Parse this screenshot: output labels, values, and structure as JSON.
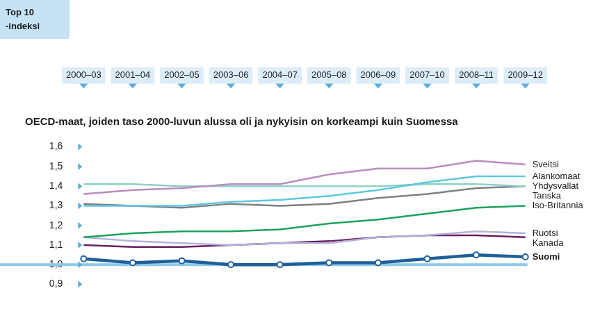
{
  "chart_data": {
    "type": "line",
    "title": "OECD-maat, joiden taso 2000-luvun alussa oli ja nykyisin on korkeampi kuin Suomessa",
    "y_label": "Top 10 -indeksi",
    "categories": [
      "2000–03",
      "2001–04",
      "2002–05",
      "2003–06",
      "2004–07",
      "2005–08",
      "2006–09",
      "2007–10",
      "2008–11",
      "2009–12"
    ],
    "ylim": [
      0.9,
      1.6
    ],
    "yticks": [
      {
        "value": 0.9,
        "label": "0,9"
      },
      {
        "value": 1.0,
        "label": "1,0"
      },
      {
        "value": 1.1,
        "label": "1,1"
      },
      {
        "value": 1.2,
        "label": "1,2"
      },
      {
        "value": 1.3,
        "label": "1,3"
      },
      {
        "value": 1.4,
        "label": "1,4"
      },
      {
        "value": 1.5,
        "label": "1,5"
      },
      {
        "value": 1.6,
        "label": "1,6"
      }
    ],
    "reference_line": 1.0,
    "grid": false,
    "series": [
      {
        "name": "Sveitsi",
        "color": "#b98cc0",
        "values": [
          1.36,
          1.38,
          1.39,
          1.41,
          1.41,
          1.46,
          1.49,
          1.49,
          1.53,
          1.51
        ]
      },
      {
        "name": "Alankomaat",
        "color": "#5cc8e0",
        "values": [
          1.3,
          1.3,
          1.3,
          1.32,
          1.33,
          1.35,
          1.38,
          1.42,
          1.45,
          1.45
        ]
      },
      {
        "name": "Yhdysvallat",
        "color": "#8ed1c6",
        "values": [
          1.41,
          1.41,
          1.4,
          1.4,
          1.4,
          1.4,
          1.4,
          1.41,
          1.41,
          1.4
        ]
      },
      {
        "name": "Tanska",
        "color": "#7f7f7f",
        "values": [
          1.31,
          1.3,
          1.29,
          1.31,
          1.3,
          1.31,
          1.34,
          1.36,
          1.39,
          1.4
        ]
      },
      {
        "name": "Iso-Britannia",
        "color": "#1aa35a",
        "values": [
          1.14,
          1.16,
          1.17,
          1.17,
          1.18,
          1.21,
          1.23,
          1.26,
          1.29,
          1.3
        ]
      },
      {
        "name": "Ruotsi",
        "color": "#b3b3de",
        "values": [
          1.14,
          1.12,
          1.11,
          1.1,
          1.11,
          1.11,
          1.14,
          1.15,
          1.17,
          1.16
        ]
      },
      {
        "name": "Kanada",
        "color": "#6b1f5e",
        "values": [
          1.1,
          1.09,
          1.09,
          1.1,
          1.11,
          1.12,
          1.14,
          1.15,
          1.15,
          1.14
        ]
      },
      {
        "name": "Suomi",
        "color": "#1f5f99",
        "marker": "circle",
        "line_style": "thick",
        "values": [
          1.03,
          1.01,
          1.02,
          1.0,
          1.0,
          1.01,
          1.01,
          1.03,
          1.05,
          1.04
        ]
      }
    ]
  }
}
